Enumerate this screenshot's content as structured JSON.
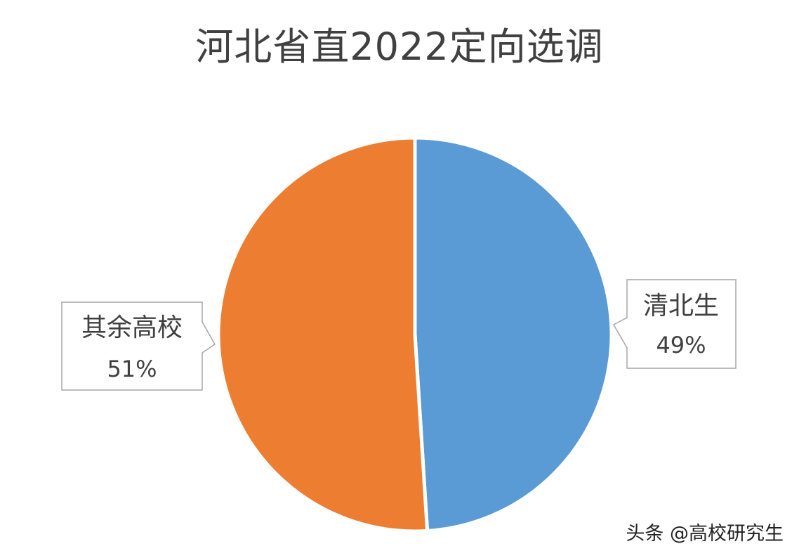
{
  "chart_data": {
    "type": "pie",
    "title": "河北省直2022定向选调",
    "slices": [
      {
        "label": "清北生",
        "value": 49,
        "value_label": "49%",
        "color": "#5B9BD5"
      },
      {
        "label": "其余高校",
        "value": 51,
        "value_label": "51%",
        "color": "#ED7D31"
      }
    ],
    "start_angle_deg": 0,
    "direction": "clockwise",
    "data_labels": "callouts"
  },
  "watermark": "头条 @高校研究生"
}
